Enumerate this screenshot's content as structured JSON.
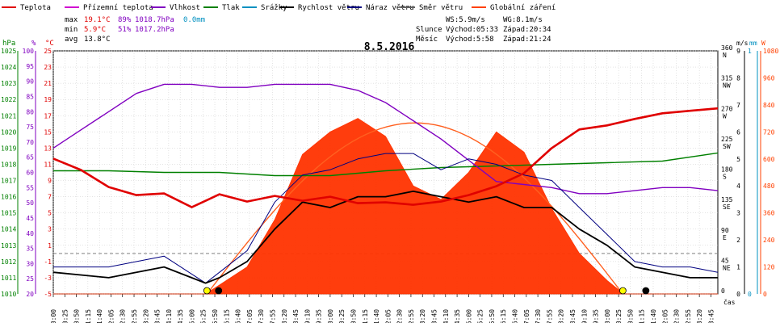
{
  "chart_data": {
    "type": "line",
    "title": "8.5.2016",
    "legend": [
      {
        "name": "Teplota",
        "color": "#e00000"
      },
      {
        "name": "Přízemní teplota",
        "color": "#d000d0"
      },
      {
        "name": "Vlhkost",
        "color": "#8000c0"
      },
      {
        "name": "Tlak",
        "color": "#008000"
      },
      {
        "name": "Srážky",
        "color": "#0090c0"
      },
      {
        "name": "Rychlost větru",
        "color": "#000000"
      },
      {
        "name": "Náraz větru",
        "color": "#000080"
      },
      {
        "name": "Směr větru",
        "color": "#606060"
      },
      {
        "name": "Globální záření",
        "color": "#ff4000"
      }
    ],
    "stats": {
      "max_label": "max",
      "max_temp": "19.1°C",
      "max_hum": "89%",
      "max_press": "1018.7hPa",
      "max_rain": "0.0mm",
      "min_label": "min",
      "min_temp": "5.9°C",
      "min_hum": "51%",
      "min_press": "1017.2hPa",
      "avg_label": "avg",
      "avg_temp": "13.8°C"
    },
    "wind_info": {
      "ws": "WS:5.9m/s",
      "wg": "WG:8.1m/s"
    },
    "sun": {
      "label": "Slunce",
      "rise": "Východ:05:33",
      "set": "Západ:20:34"
    },
    "moon": {
      "label": "Měsíc",
      "rise": "Východ:5:58",
      "set": "Západ:21:24"
    },
    "axes": {
      "hpa_unit": "hPa",
      "pct_unit": "%",
      "c_unit": "°C",
      "dir_unit": "°",
      "ms_unit": "m/s",
      "mm_unit": "mm",
      "w_unit": "W",
      "xlabel": "čas",
      "hpa_ticks": [
        "1025",
        "1024",
        "1023",
        "1022",
        "1021",
        "1020",
        "1019",
        "1018",
        "1017",
        "1016",
        "1015",
        "1014",
        "1013",
        "1012",
        "1011",
        "1010"
      ],
      "pct_ticks": [
        "100",
        "95",
        "90",
        "85",
        "80",
        "75",
        "70",
        "65",
        "60",
        "55",
        "50",
        "45",
        "40",
        "35",
        "30",
        "25",
        "20"
      ],
      "c_ticks": [
        "25",
        "23",
        "21",
        "19",
        "17",
        "15",
        "13",
        "11",
        "9",
        "7",
        "5",
        "3",
        "1",
        "-1",
        "-3",
        "-5"
      ],
      "dir_ticks": [
        {
          "deg": "360",
          "card": "N"
        },
        {
          "deg": "315",
          "card": "NW"
        },
        {
          "deg": "270",
          "card": "W"
        },
        {
          "deg": "225",
          "card": "SW"
        },
        {
          "deg": "180",
          "card": "S"
        },
        {
          "deg": "135",
          "card": "SE"
        },
        {
          "deg": "90",
          "card": "E"
        },
        {
          "deg": "45",
          "card": "NE"
        },
        {
          "deg": "0",
          "card": ""
        }
      ],
      "ms_ticks": [
        "9",
        "8",
        "7",
        "6",
        "5",
        "4",
        "3",
        "2",
        "1",
        "0"
      ],
      "mm_ticks": [
        "1",
        "0"
      ],
      "w_ticks": [
        "1080",
        "960",
        "840",
        "720",
        "600",
        "480",
        "360",
        "240",
        "120",
        "0"
      ],
      "x_ticks": [
        "00:00",
        "00:25",
        "00:50",
        "01:15",
        "01:40",
        "02:05",
        "02:30",
        "02:55",
        "03:20",
        "03:45",
        "04:10",
        "04:35",
        "05:00",
        "05:25",
        "05:50",
        "06:15",
        "06:40",
        "07:05",
        "07:30",
        "07:55",
        "08:20",
        "08:45",
        "09:10",
        "09:35",
        "10:00",
        "10:25",
        "10:50",
        "11:15",
        "11:40",
        "12:05",
        "12:30",
        "12:55",
        "13:20",
        "13:45",
        "14:10",
        "14:35",
        "15:00",
        "15:25",
        "15:50",
        "16:15",
        "16:40",
        "17:05",
        "17:30",
        "17:55",
        "18:20",
        "18:45",
        "19:10",
        "19:35",
        "20:00",
        "20:25",
        "20:50",
        "21:15",
        "21:40",
        "22:05",
        "22:30",
        "22:55",
        "23:20",
        "23:45"
      ]
    },
    "series": [
      {
        "name": "Teplota",
        "unit": "°C",
        "x": [
          0,
          1,
          2,
          3,
          4,
          5,
          6,
          7,
          8,
          9,
          10,
          11,
          12,
          13,
          14,
          15,
          16,
          17,
          18,
          19,
          20,
          21,
          22,
          23,
          24
        ],
        "values": [
          11.7,
          10.3,
          8.2,
          7.2,
          7.4,
          5.7,
          7.3,
          6.4,
          7.1,
          6.5,
          7.0,
          6.2,
          6.3,
          6.0,
          6.4,
          7.2,
          8.3,
          9.9,
          13.0,
          15.3,
          15.8,
          16.6,
          17.3,
          17.6,
          17.9
        ]
      },
      {
        "name": "Vlhkost",
        "unit": "%",
        "x": [
          0,
          1,
          2,
          3,
          4,
          5,
          6,
          7,
          8,
          9,
          10,
          11,
          12,
          13,
          14,
          15,
          16,
          17,
          18,
          19,
          20,
          21,
          22,
          23,
          24
        ],
        "values": [
          68,
          74,
          80,
          86,
          89,
          89,
          88,
          88,
          89,
          89,
          89,
          87,
          83,
          77,
          71,
          64,
          57,
          56,
          55,
          53,
          53,
          54,
          55,
          55,
          54
        ]
      },
      {
        "name": "Tlak",
        "unit": "hPa",
        "x": [
          0,
          2,
          4,
          6,
          8,
          10,
          12,
          14,
          16,
          18,
          20,
          22,
          24
        ],
        "values": [
          1017.6,
          1017.6,
          1017.5,
          1017.5,
          1017.3,
          1017.3,
          1017.6,
          1017.8,
          1017.9,
          1018.0,
          1018.1,
          1018.2,
          1018.7
        ]
      },
      {
        "name": "Globální záření",
        "unit": "W",
        "x": [
          0,
          5.5,
          6,
          7,
          8,
          9,
          10,
          11,
          12,
          13,
          14,
          15,
          16,
          17,
          18,
          19,
          20,
          20.6,
          24
        ],
        "values": [
          0,
          0,
          40,
          120,
          330,
          620,
          720,
          780,
          700,
          480,
          420,
          540,
          720,
          630,
          380,
          180,
          60,
          0,
          0
        ]
      },
      {
        "name": "Rychlost větru",
        "unit": "m/s",
        "x": [
          0,
          2,
          4,
          5.5,
          6,
          7,
          8,
          9,
          10,
          11,
          12,
          13,
          14,
          15,
          16,
          17,
          18,
          19,
          20,
          21,
          22,
          23,
          24
        ],
        "values": [
          0.8,
          0.6,
          1.0,
          0.4,
          0.6,
          1.2,
          2.4,
          3.4,
          3.2,
          3.6,
          3.6,
          3.8,
          3.6,
          3.4,
          3.6,
          3.2,
          3.2,
          2.4,
          1.8,
          1.0,
          0.8,
          0.6,
          0.6
        ]
      },
      {
        "name": "Náraz větru",
        "unit": "m/s",
        "x": [
          0,
          2,
          4,
          5.5,
          6,
          7,
          8,
          9,
          10,
          11,
          12,
          13,
          14,
          15,
          16,
          17,
          18,
          19,
          20,
          21,
          22,
          23,
          24
        ],
        "values": [
          1.0,
          1.0,
          1.4,
          0.4,
          0.8,
          1.6,
          3.4,
          4.4,
          4.6,
          5.0,
          5.2,
          5.2,
          4.6,
          5.0,
          4.8,
          4.4,
          4.2,
          3.2,
          2.2,
          1.2,
          1.0,
          1.0,
          0.8
        ]
      }
    ],
    "ylim": {
      "temp": [
        -5,
        25
      ],
      "hum": [
        20,
        100
      ],
      "press": [
        1010,
        1025
      ],
      "dir": [
        0,
        360
      ],
      "wind": [
        0,
        9
      ],
      "rain": [
        0,
        1
      ],
      "rad": [
        0,
        1080
      ]
    },
    "xlim": [
      0,
      24
    ]
  }
}
